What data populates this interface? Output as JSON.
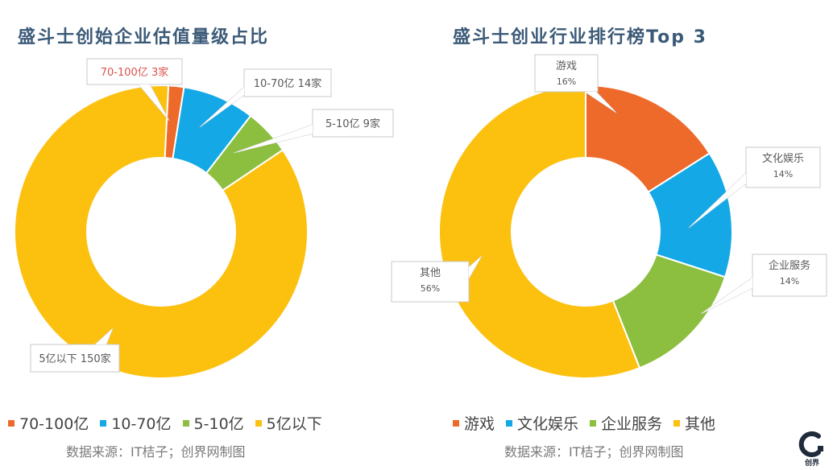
{
  "chart_data": [
    {
      "type": "pie",
      "title": "盛斗士创始企业估值量级占比",
      "categories": [
        "70-100亿",
        "10-70亿",
        "5-10亿",
        "5亿以下"
      ],
      "values": [
        3,
        14,
        9,
        150
      ],
      "data_labels": [
        "70-100亿  3家",
        "10-70亿  14家",
        "5-10亿  9家",
        "5亿以下  150家"
      ],
      "colors": [
        "#ed6a2b",
        "#14a9e6",
        "#8cbf3f",
        "#fcc00f"
      ],
      "label_colors": [
        "#d9534f",
        "#595959",
        "#595959",
        "#595959"
      ],
      "legend": "bottom",
      "source": "数据来源：IT桔子；创界网制图"
    },
    {
      "type": "pie",
      "title": "盛斗士创业行业排行榜Top 3",
      "categories": [
        "游戏",
        "文化娱乐",
        "企业服务",
        "其他"
      ],
      "values": [
        16,
        14,
        14,
        56
      ],
      "data_labels": [
        [
          "游戏",
          "16%"
        ],
        [
          "文化娱乐",
          "14%"
        ],
        [
          "企业服务",
          "14%"
        ],
        [
          "其他",
          "56%"
        ]
      ],
      "colors": [
        "#ed6a2b",
        "#14a9e6",
        "#8cbf3f",
        "#fcc00f"
      ],
      "legend": "bottom",
      "source": "数据来源：IT桔子；创界网制图"
    }
  ],
  "logo": {
    "text": "创界"
  }
}
